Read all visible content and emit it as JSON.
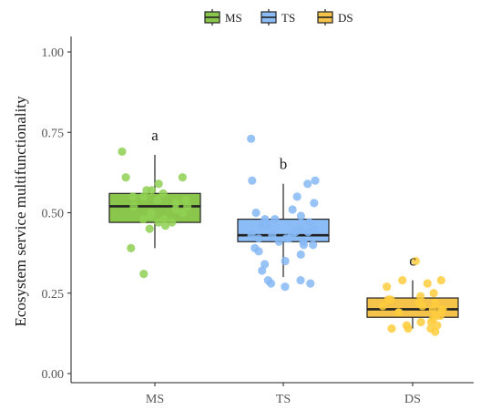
{
  "chart_data": {
    "type": "box",
    "ylabel": "Ecosystem service multifunctionality",
    "ylim": [
      0,
      1
    ],
    "yticks": [
      "0.00",
      "0.25",
      "0.50",
      "0.75",
      "1.00"
    ],
    "categories": [
      "MS",
      "TS",
      "DS"
    ],
    "legend": {
      "placement": "top",
      "items": [
        "MS",
        "TS",
        "DS"
      ]
    },
    "grid": false,
    "colors": {
      "MS": "#8ac64b",
      "TS": "#8cbcf5",
      "DS": "#f5c24a"
    },
    "point_colors": {
      "MS": "#8fd052",
      "TS": "#86b8f4",
      "DS": "#ffcc3d"
    },
    "series": [
      {
        "name": "MS",
        "box": {
          "whisker_low": 0.39,
          "q1": 0.47,
          "median": 0.52,
          "q3": 0.56,
          "whisker_high": 0.68
        },
        "points": [
          0.69,
          0.61,
          0.61,
          0.59,
          0.57,
          0.57,
          0.56,
          0.55,
          0.55,
          0.54,
          0.54,
          0.53,
          0.52,
          0.52,
          0.51,
          0.5,
          0.5,
          0.49,
          0.48,
          0.48,
          0.47,
          0.47,
          0.46,
          0.45,
          0.39,
          0.31
        ],
        "letter": "a"
      },
      {
        "name": "TS",
        "box": {
          "whisker_low": 0.3,
          "q1": 0.41,
          "median": 0.43,
          "q3": 0.48,
          "whisker_high": 0.59
        },
        "points": [
          0.73,
          0.6,
          0.6,
          0.59,
          0.55,
          0.53,
          0.51,
          0.5,
          0.49,
          0.48,
          0.48,
          0.47,
          0.47,
          0.46,
          0.46,
          0.45,
          0.45,
          0.45,
          0.44,
          0.44,
          0.43,
          0.43,
          0.43,
          0.42,
          0.42,
          0.42,
          0.41,
          0.41,
          0.4,
          0.4,
          0.39,
          0.38,
          0.37,
          0.35,
          0.34,
          0.32,
          0.29,
          0.29,
          0.28,
          0.28,
          0.27
        ],
        "letter": "b"
      },
      {
        "name": "DS",
        "box": {
          "whisker_low": 0.14,
          "q1": 0.175,
          "median": 0.2,
          "q3": 0.235,
          "whisker_high": 0.29
        },
        "points": [
          0.35,
          0.29,
          0.29,
          0.28,
          0.27,
          0.25,
          0.24,
          0.23,
          0.23,
          0.22,
          0.22,
          0.21,
          0.21,
          0.2,
          0.2,
          0.2,
          0.19,
          0.19,
          0.18,
          0.18,
          0.17,
          0.16,
          0.16,
          0.15,
          0.15,
          0.14,
          0.14,
          0.14,
          0.13
        ],
        "letter": "c"
      }
    ]
  }
}
